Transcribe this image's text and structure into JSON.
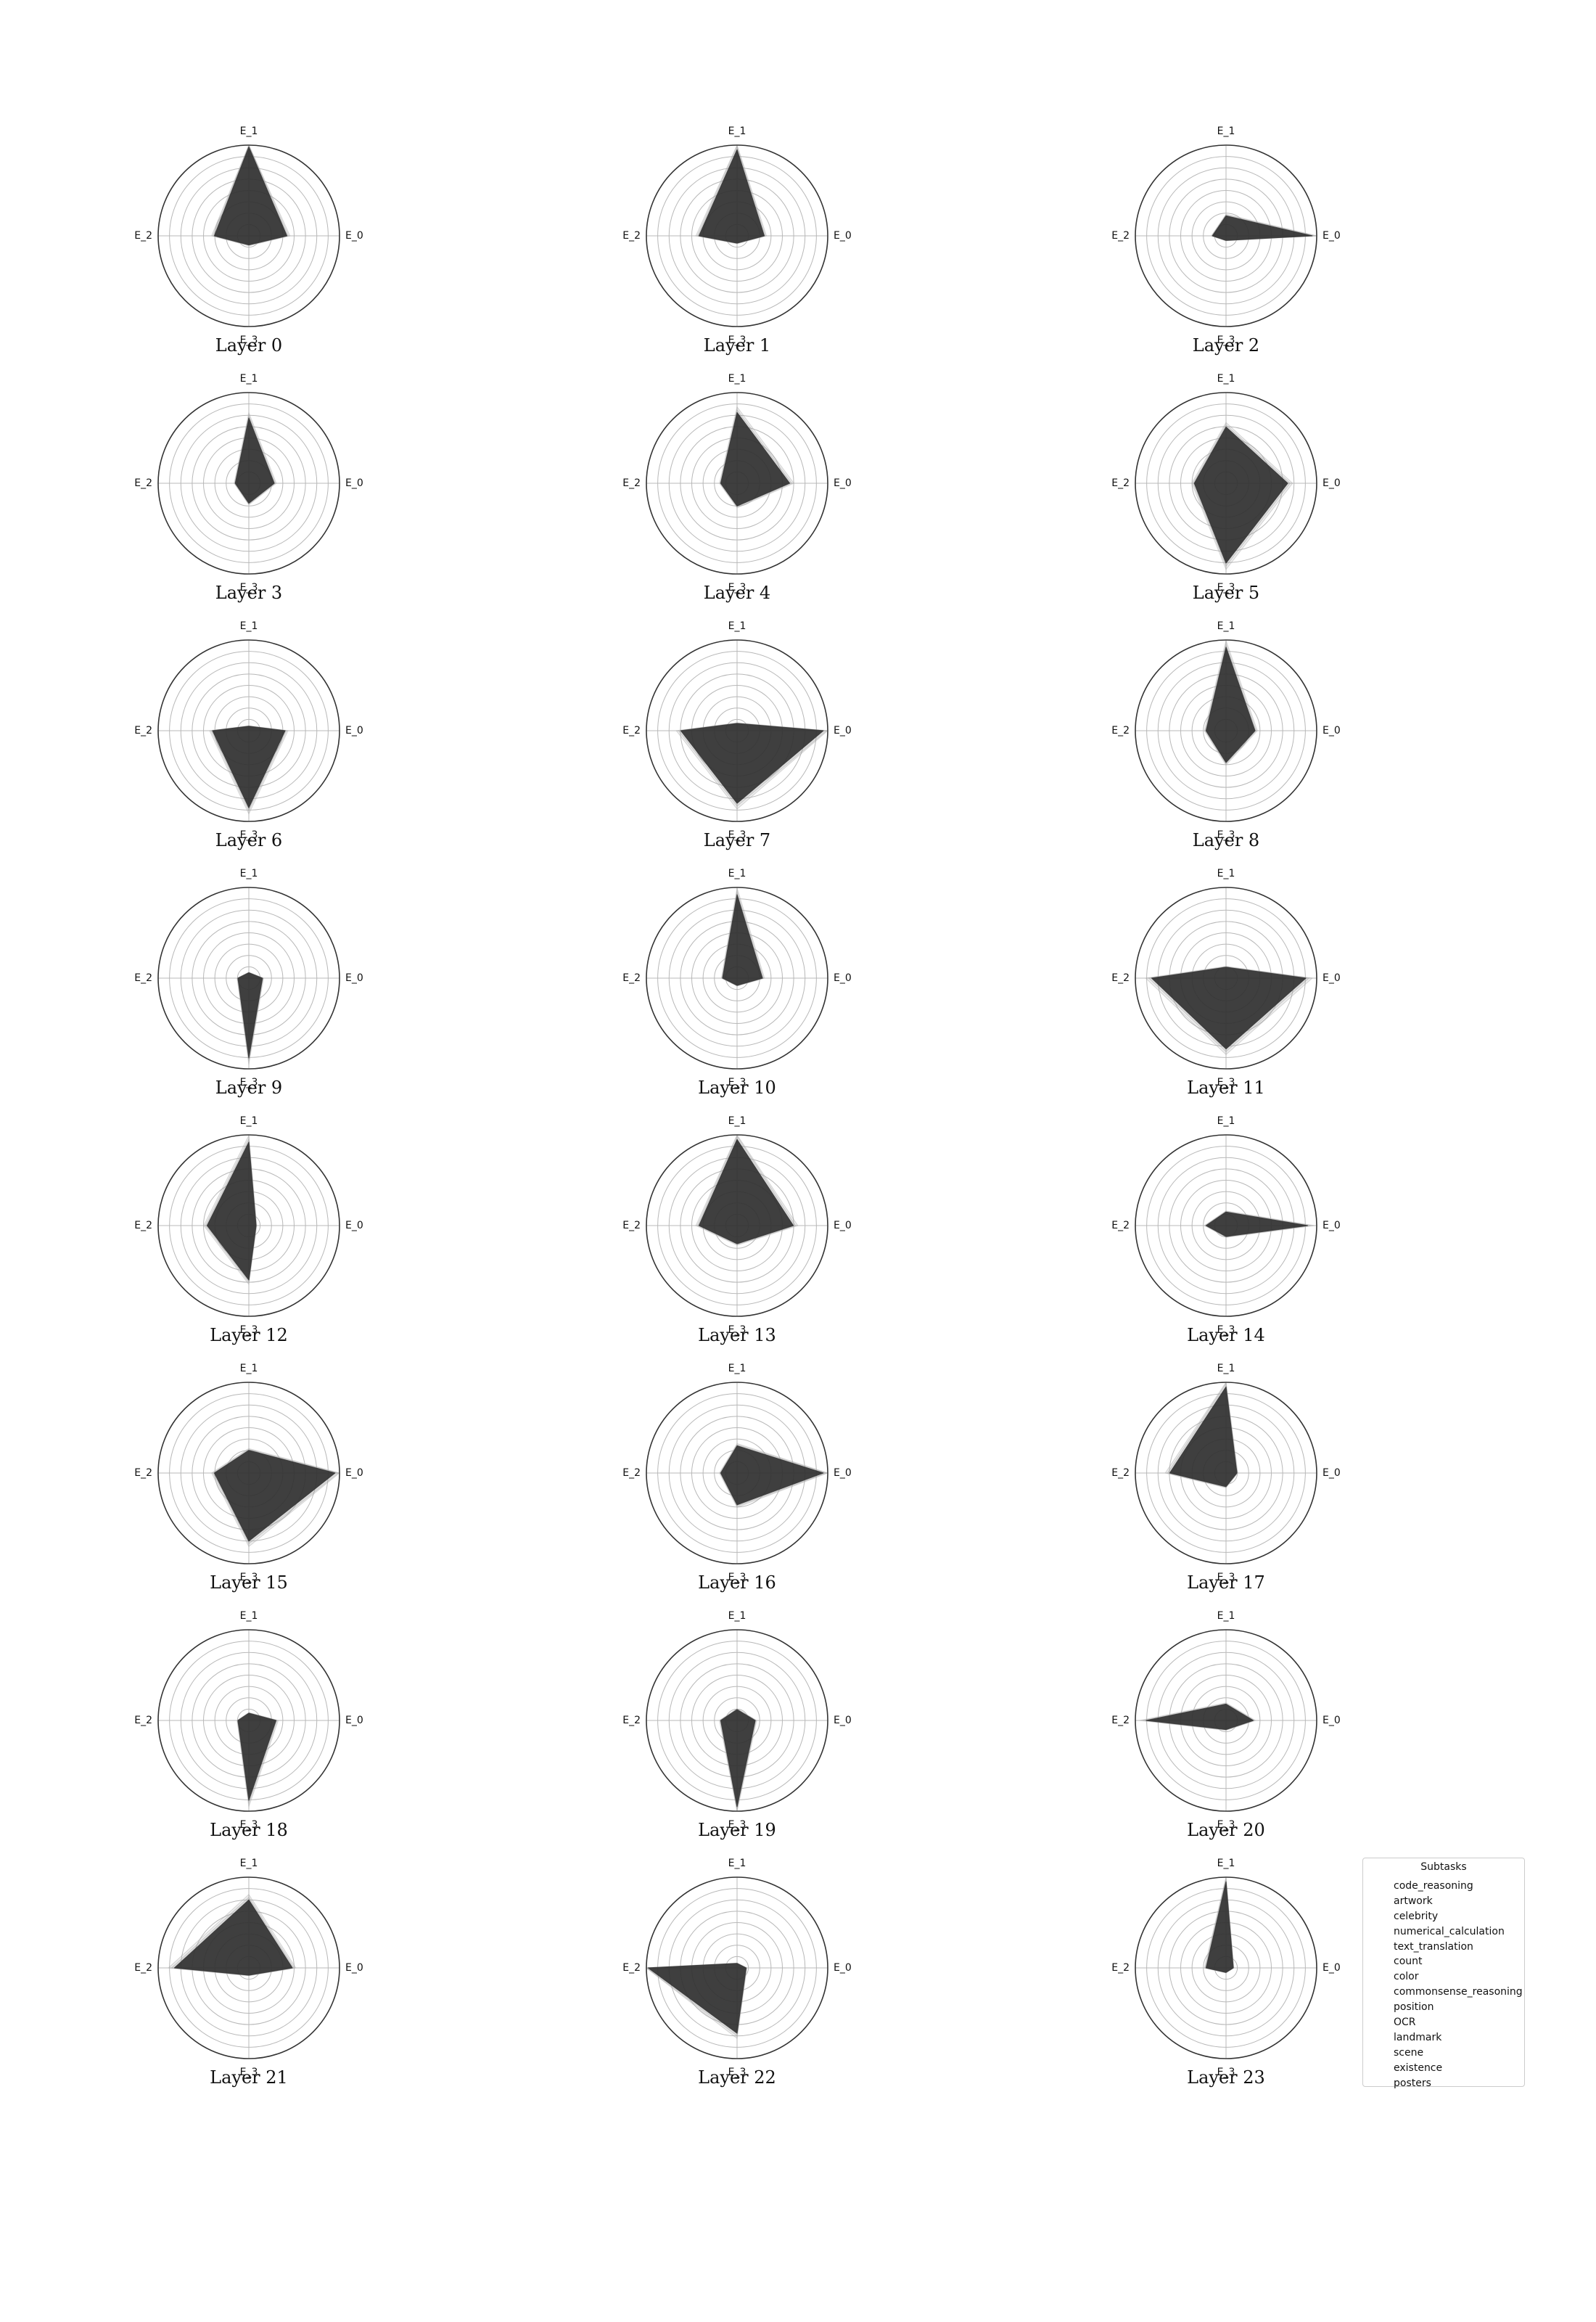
{
  "chart_data": {
    "type": "radar",
    "axes": [
      "E_0",
      "E_1",
      "E_2",
      "E_3"
    ],
    "legend": {
      "title": "Subtasks",
      "entries": [
        "code_reasoning",
        "artwork",
        "celebrity",
        "numerical_calculation",
        "text_translation",
        "count",
        "color",
        "commonsense_reasoning",
        "position",
        "OCR",
        "landmark",
        "scene",
        "existence",
        "posters"
      ]
    },
    "panels": [
      {
        "title": "Layer 0",
        "values": [
          0.42,
          0.98,
          0.38,
          0.1
        ]
      },
      {
        "title": "Layer 1",
        "values": [
          0.3,
          0.95,
          0.42,
          0.08
        ]
      },
      {
        "title": "Layer 2",
        "values": [
          0.95,
          0.22,
          0.15,
          0.05
        ]
      },
      {
        "title": "Layer 3",
        "values": [
          0.28,
          0.72,
          0.15,
          0.22
        ]
      },
      {
        "title": "Layer 4",
        "values": [
          0.58,
          0.78,
          0.18,
          0.25
        ]
      },
      {
        "title": "Layer 5",
        "values": [
          0.68,
          0.62,
          0.35,
          0.88
        ]
      },
      {
        "title": "Layer 6",
        "values": [
          0.4,
          0.05,
          0.4,
          0.85
        ]
      },
      {
        "title": "Layer 7",
        "values": [
          0.95,
          0.08,
          0.62,
          0.8
        ]
      },
      {
        "title": "Layer 8",
        "values": [
          0.32,
          0.92,
          0.22,
          0.35
        ]
      },
      {
        "title": "Layer 9",
        "values": [
          0.15,
          0.06,
          0.12,
          0.88
        ]
      },
      {
        "title": "Layer 10",
        "values": [
          0.28,
          0.92,
          0.16,
          0.08
        ]
      },
      {
        "title": "Layer 11",
        "values": [
          0.88,
          0.12,
          0.82,
          0.78
        ]
      },
      {
        "title": "Layer 12",
        "values": [
          0.08,
          0.92,
          0.46,
          0.6
        ]
      },
      {
        "title": "Layer 13",
        "values": [
          0.62,
          0.95,
          0.42,
          0.2
        ]
      },
      {
        "title": "Layer 14",
        "values": [
          0.9,
          0.15,
          0.22,
          0.12
        ]
      },
      {
        "title": "Layer 15",
        "values": [
          0.95,
          0.25,
          0.38,
          0.75
        ]
      },
      {
        "title": "Layer 16",
        "values": [
          0.95,
          0.3,
          0.18,
          0.35
        ]
      },
      {
        "title": "Layer 17",
        "values": [
          0.12,
          0.95,
          0.62,
          0.15
        ]
      },
      {
        "title": "Layer 18",
        "values": [
          0.3,
          0.08,
          0.12,
          0.88
        ]
      },
      {
        "title": "Layer 19",
        "values": [
          0.2,
          0.12,
          0.18,
          0.95
        ]
      },
      {
        "title": "Layer 20",
        "values": [
          0.3,
          0.18,
          0.88,
          0.1
        ]
      },
      {
        "title": "Layer 21",
        "values": [
          0.48,
          0.75,
          0.82,
          0.08
        ]
      },
      {
        "title": "Layer 22",
        "values": [
          0.1,
          0.05,
          0.98,
          0.72
        ]
      },
      {
        "title": "Layer 23",
        "values": [
          0.08,
          0.95,
          0.22,
          0.05
        ]
      }
    ],
    "rmax": 1.0,
    "grid": true,
    "legend_placement": "bottom-right"
  }
}
